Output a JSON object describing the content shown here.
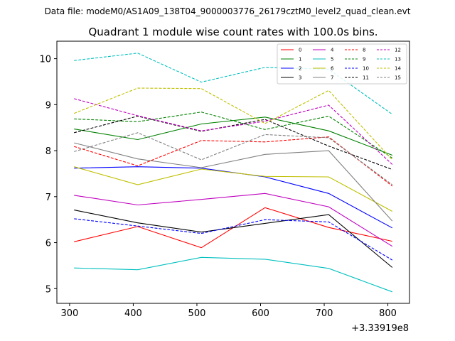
{
  "chart_data": {
    "type": "line",
    "suptitle": "Data file: modeM0/AS1A09_138T04_9000003776_26179cztM0_level2_quad_clean.evt",
    "title": "Quadrant 1 module wise count rates with 100.0s bins.",
    "xlabel": "",
    "ylabel": "",
    "x_offset_label": "+3.33919e8",
    "x": [
      307,
      407,
      507,
      607,
      707,
      807
    ],
    "xlim": [
      280,
      834
    ],
    "ylim": [
      4.68,
      10.38
    ],
    "xticks": [
      300,
      400,
      500,
      600,
      700,
      800
    ],
    "yticks": [
      5,
      6,
      7,
      8,
      9,
      10
    ],
    "grid": false,
    "legend_position": "top-right",
    "legend_columns": 4,
    "series": [
      {
        "name": "0",
        "color": "#ff0000",
        "dashed": false,
        "values": [
          6.02,
          6.35,
          5.89,
          6.76,
          6.33,
          6.03
        ]
      },
      {
        "name": "1",
        "color": "#008000",
        "dashed": false,
        "values": [
          8.47,
          8.24,
          8.58,
          8.73,
          8.43,
          7.9
        ]
      },
      {
        "name": "2",
        "color": "#0000ff",
        "dashed": false,
        "values": [
          7.62,
          7.65,
          7.62,
          7.43,
          7.07,
          6.32
        ]
      },
      {
        "name": "3",
        "color": "#000000",
        "dashed": false,
        "values": [
          6.71,
          6.43,
          6.23,
          6.42,
          6.61,
          5.46
        ]
      },
      {
        "name": "4",
        "color": "#bf00bf",
        "dashed": false,
        "values": [
          7.03,
          6.82,
          6.94,
          7.07,
          6.78,
          5.92
        ]
      },
      {
        "name": "5",
        "color": "#00bfbf",
        "dashed": false,
        "values": [
          5.45,
          5.41,
          5.68,
          5.64,
          5.44,
          4.93
        ]
      },
      {
        "name": "6",
        "color": "#bfbf00",
        "dashed": false,
        "values": [
          7.65,
          7.26,
          7.6,
          7.44,
          7.43,
          6.68
        ]
      },
      {
        "name": "7",
        "color": "#808080",
        "dashed": false,
        "values": [
          8.17,
          7.82,
          7.63,
          7.92,
          8.0,
          6.47
        ]
      },
      {
        "name": "8",
        "color": "#ff0000",
        "dashed": true,
        "values": [
          8.09,
          7.67,
          8.22,
          8.19,
          8.3,
          7.23
        ]
      },
      {
        "name": "9",
        "color": "#008000",
        "dashed": true,
        "values": [
          8.69,
          8.63,
          8.84,
          8.46,
          8.75,
          7.84
        ]
      },
      {
        "name": "10",
        "color": "#0000ff",
        "dashed": true,
        "values": [
          6.52,
          6.36,
          6.2,
          6.5,
          6.45,
          5.62
        ]
      },
      {
        "name": "11",
        "color": "#000000",
        "dashed": true,
        "values": [
          8.39,
          8.75,
          8.42,
          8.68,
          8.1,
          7.59
        ]
      },
      {
        "name": "12",
        "color": "#bf00bf",
        "dashed": true,
        "values": [
          9.13,
          8.76,
          8.43,
          8.64,
          8.99,
          7.7
        ]
      },
      {
        "name": "13",
        "color": "#00bfbf",
        "dashed": true,
        "values": [
          9.96,
          10.12,
          9.49,
          9.81,
          9.77,
          8.79
        ]
      },
      {
        "name": "14",
        "color": "#bfbf00",
        "dashed": true,
        "values": [
          8.81,
          9.36,
          9.35,
          8.59,
          9.31,
          7.8
        ]
      },
      {
        "name": "15",
        "color": "#808080",
        "dashed": true,
        "values": [
          7.98,
          8.39,
          7.8,
          8.35,
          8.28,
          7.26
        ]
      }
    ]
  }
}
